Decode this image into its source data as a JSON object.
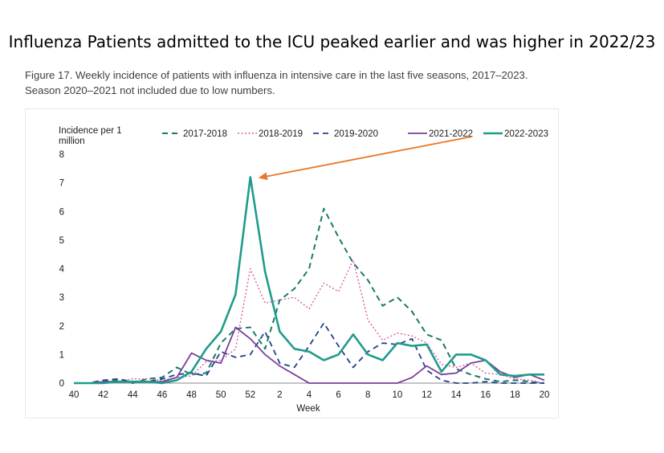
{
  "headline": "Influenza Patients admitted to the ICU peaked earlier and was higher in 2022/23",
  "caption": "Figure 17. Weekly incidence of patients with influenza in intensive care in the last five seasons, 2017–2023. Season 2020–2021 not included due to low numbers.",
  "chart_data": {
    "type": "line",
    "ylabel": "Incidence per 1 million",
    "xlabel": "Week",
    "ylim": [
      0,
      8
    ],
    "yticks": [
      "0",
      "1",
      "2",
      "3",
      "4",
      "5",
      "6",
      "7",
      "8"
    ],
    "x": [
      "40",
      "41",
      "42",
      "43",
      "44",
      "45",
      "46",
      "47",
      "48",
      "49",
      "50",
      "51",
      "52",
      "1",
      "2",
      "3",
      "4",
      "5",
      "6",
      "7",
      "8",
      "9",
      "10",
      "11",
      "12",
      "13",
      "14",
      "15",
      "16",
      "17",
      "18",
      "19",
      "20"
    ],
    "xtick_labels": [
      "40",
      "42",
      "44",
      "46",
      "48",
      "50",
      "52",
      "2",
      "4",
      "6",
      "8",
      "10",
      "12",
      "14",
      "16",
      "18",
      "20"
    ],
    "grid": false,
    "legend_position": "top",
    "series": [
      {
        "name": "2017-2018",
        "color": "#1a7a68",
        "dash": "dashed",
        "values": [
          0,
          0,
          0.05,
          0.1,
          0,
          0.15,
          0.2,
          0.55,
          0.3,
          0.35,
          1.4,
          1.9,
          1.95,
          1.2,
          2.9,
          3.3,
          4,
          6.1,
          5.1,
          4.2,
          3.6,
          2.7,
          3,
          2.5,
          1.7,
          1.5,
          0.5,
          0.3,
          0.15,
          0.05,
          0.1,
          0.05,
          0
        ]
      },
      {
        "name": "2018-2019",
        "color": "#d65fa6",
        "dash": "dotted",
        "values": [
          0,
          0,
          0,
          0.05,
          0.15,
          0.15,
          0.1,
          0.2,
          0.25,
          0.75,
          0.8,
          1.2,
          4,
          2.8,
          2.9,
          3,
          2.6,
          3.5,
          3.2,
          4.3,
          2.2,
          1.5,
          1.75,
          1.65,
          1.4,
          0.65,
          0.55,
          0.7,
          0.35,
          0.3,
          0.15,
          0.1,
          0
        ]
      },
      {
        "name": "2019-2020",
        "color": "#23408e",
        "dash": "dashed",
        "values": [
          0,
          0,
          0.1,
          0.15,
          0.05,
          0.05,
          0.15,
          0.3,
          0.35,
          0.25,
          1.1,
          0.9,
          1,
          1.8,
          0.7,
          0.55,
          1.3,
          2.1,
          1.3,
          0.55,
          1.1,
          1.4,
          1.35,
          1.55,
          0.45,
          0.1,
          0,
          0,
          0.05,
          0,
          0,
          0,
          0
        ]
      },
      {
        "name": "2021-2022",
        "color": "#7a3f9a",
        "dash": "solid",
        "values": [
          0,
          0,
          0.05,
          0.05,
          0.05,
          0.05,
          0.05,
          0.2,
          1.05,
          0.8,
          0.7,
          1.95,
          1.55,
          1,
          0.6,
          0.3,
          0,
          0,
          0,
          0,
          0,
          0,
          0,
          0.2,
          0.6,
          0.3,
          0.35,
          0.7,
          0.8,
          0.4,
          0.2,
          0.3,
          0.1
        ]
      },
      {
        "name": "2022-2023",
        "color": "#1f9c8c",
        "dash": "solid",
        "values": [
          0,
          0,
          0,
          0.05,
          0.05,
          0.05,
          0,
          0.1,
          0.4,
          1.2,
          1.8,
          3.1,
          7.2,
          3.9,
          1.8,
          1.2,
          1.1,
          0.8,
          1,
          1.7,
          1,
          0.8,
          1.4,
          1.3,
          1.35,
          0.4,
          1,
          1,
          0.8,
          0.3,
          0.25,
          0.3,
          0.3
        ]
      }
    ]
  }
}
